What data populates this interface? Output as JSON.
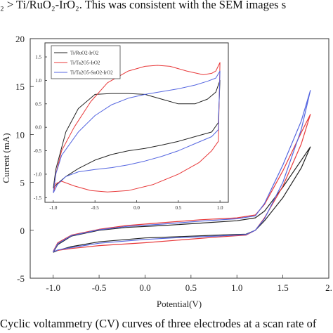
{
  "top_text": "₂ > Ti/RuO₂-IrO₂. This was consistent with the SEM images s",
  "caption": "Cyclic voltammetry (CV) curves of three electrodes at a scan rate of",
  "colors": {
    "black": "#222222",
    "red": "#e8393a",
    "blue": "#5566e0"
  },
  "chart_data": [
    {
      "type": "line",
      "xlabel": "Potential(V)",
      "ylabel": "Current (mA)",
      "xlim": [
        -1.25,
        2.0
      ],
      "ylim": [
        -5,
        20
      ],
      "x_ticks": [
        "-1.0",
        "-0.5",
        "0.0",
        "0.5",
        "1.0",
        "1.5",
        "2."
      ],
      "y_ticks": [
        "-5",
        "0",
        "5",
        "10",
        "15",
        "20"
      ],
      "legend": "inset",
      "series": [
        {
          "name": "Ti/RuO2-IrO2",
          "color": "#222222",
          "x": [
            -1.0,
            -0.95,
            -0.8,
            -0.5,
            -0.2,
            0.2,
            0.6,
            1.0,
            1.2,
            1.3,
            1.5,
            1.7,
            1.8,
            1.7,
            1.5,
            1.3,
            1.2,
            1.1,
            0.8,
            0.4,
            0.0,
            -0.5,
            -0.8,
            -0.95,
            -1.0
          ],
          "y": [
            -2.3,
            -1.5,
            -0.6,
            0.0,
            0.3,
            0.5,
            0.75,
            1.0,
            1.3,
            2.0,
            4.5,
            7.3,
            8.7,
            6.5,
            3.4,
            1.0,
            0.0,
            -0.4,
            -0.5,
            -0.65,
            -0.8,
            -1.2,
            -1.7,
            -2.1,
            -2.3
          ]
        },
        {
          "name": "Ti/Ta2O5-IrO2",
          "color": "#e8393a",
          "x": [
            -1.0,
            -0.95,
            -0.8,
            -0.5,
            -0.2,
            0.2,
            0.6,
            1.0,
            1.2,
            1.3,
            1.5,
            1.7,
            1.8,
            1.7,
            1.5,
            1.3,
            1.2,
            1.1,
            0.8,
            0.4,
            0.0,
            -0.5,
            -0.8,
            -0.95,
            -1.0
          ],
          "y": [
            -2.2,
            -1.3,
            -0.5,
            0.1,
            0.5,
            0.8,
            1.1,
            1.3,
            1.6,
            2.7,
            6.2,
            10.2,
            12.1,
            9.0,
            4.6,
            1.3,
            0.0,
            -0.5,
            -0.7,
            -1.0,
            -1.3,
            -1.6,
            -1.9,
            -2.1,
            -2.2
          ]
        },
        {
          "name": "Ti/Ta2O5-SnO2-IrO2",
          "color": "#5566e0",
          "x": [
            -1.0,
            -0.95,
            -0.8,
            -0.5,
            -0.2,
            0.2,
            0.6,
            1.0,
            1.2,
            1.3,
            1.5,
            1.7,
            1.8,
            1.7,
            1.5,
            1.3,
            1.2,
            1.1,
            0.8,
            0.4,
            0.0,
            -0.5,
            -0.8,
            -0.95,
            -1.0
          ],
          "y": [
            -2.25,
            -1.4,
            -0.55,
            0.05,
            0.4,
            0.65,
            0.95,
            1.2,
            1.5,
            2.8,
            6.8,
            11.4,
            14.6,
            10.5,
            5.0,
            1.2,
            0.0,
            -0.45,
            -0.6,
            -0.75,
            -0.95,
            -1.35,
            -1.8,
            -2.05,
            -2.25
          ]
        }
      ]
    },
    {
      "type": "line",
      "xlim": [
        -1.1,
        1.1
      ],
      "ylim": [
        -1.6,
        1.8
      ],
      "x_ticks": [
        "-1.0",
        "-0.5",
        "0.0",
        "0.5",
        "1.0"
      ],
      "y_ticks": [
        "-1.5",
        "-1.0",
        "-0.5",
        "0.0",
        "0.5",
        "1.0",
        "1.5"
      ],
      "legend": "top-left",
      "series": [
        {
          "name": "Ti/RuO2-IrO2",
          "color": "#222222",
          "x": [
            -1.0,
            -0.97,
            -0.85,
            -0.7,
            -0.5,
            -0.3,
            -0.1,
            0.1,
            0.3,
            0.5,
            0.7,
            0.85,
            0.95,
            1.0,
            0.98,
            0.9,
            0.7,
            0.5,
            0.3,
            0.1,
            -0.1,
            -0.3,
            -0.5,
            -0.7,
            -0.85,
            -0.95,
            -1.0
          ],
          "y": [
            -1.3,
            -0.9,
            -0.1,
            0.4,
            0.7,
            0.72,
            0.72,
            0.7,
            0.6,
            0.5,
            0.5,
            0.6,
            0.75,
            1.0,
            0.1,
            -0.1,
            -0.2,
            -0.3,
            -0.38,
            -0.45,
            -0.5,
            -0.58,
            -0.7,
            -0.88,
            -1.05,
            -1.2,
            -1.3
          ]
        },
        {
          "name": "Ti/Ta2O5-IrO2",
          "color": "#e8393a",
          "x": [
            -1.0,
            -0.97,
            -0.9,
            -0.75,
            -0.55,
            -0.35,
            -0.1,
            0.1,
            0.25,
            0.4,
            0.6,
            0.8,
            0.9,
            0.95,
            1.0,
            0.98,
            0.9,
            0.75,
            0.5,
            0.2,
            -0.1,
            -0.35,
            -0.55,
            -0.75,
            -0.9,
            -0.97,
            -1.0
          ],
          "y": [
            -1.4,
            -1.0,
            -0.5,
            0.0,
            0.55,
            0.95,
            1.2,
            1.3,
            1.32,
            1.3,
            1.2,
            1.12,
            1.15,
            1.2,
            1.38,
            -0.3,
            -0.5,
            -0.75,
            -1.0,
            -1.22,
            -1.35,
            -1.38,
            -1.35,
            -1.25,
            -1.15,
            -1.2,
            -1.4
          ]
        },
        {
          "name": "Ti/Ta2O5-SnO2-IrO2",
          "color": "#5566e0",
          "x": [
            -1.0,
            -0.97,
            -0.9,
            -0.7,
            -0.5,
            -0.3,
            -0.1,
            0.1,
            0.3,
            0.5,
            0.7,
            0.85,
            0.95,
            1.0,
            0.98,
            0.9,
            0.7,
            0.5,
            0.3,
            0.1,
            -0.1,
            -0.3,
            -0.5,
            -0.7,
            -0.85,
            -0.95,
            -1.0
          ],
          "y": [
            -1.4,
            -1.0,
            -0.6,
            -0.1,
            0.25,
            0.48,
            0.62,
            0.7,
            0.76,
            0.82,
            0.9,
            0.98,
            1.05,
            1.2,
            -0.05,
            -0.2,
            -0.35,
            -0.5,
            -0.62,
            -0.72,
            -0.8,
            -0.86,
            -0.9,
            -0.95,
            -1.05,
            -1.22,
            -1.4
          ]
        }
      ]
    }
  ]
}
